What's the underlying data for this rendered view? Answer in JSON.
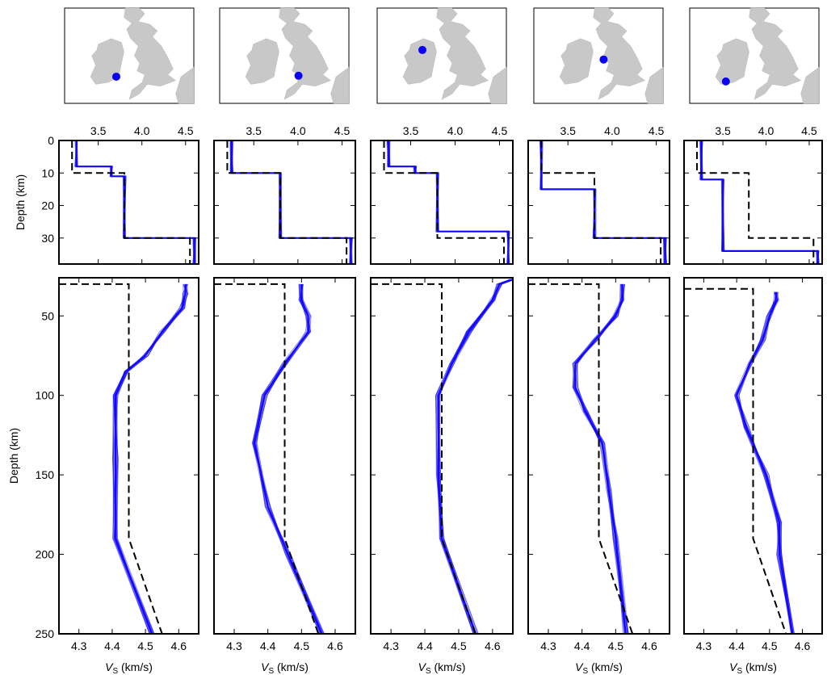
{
  "figure": {
    "colors": {
      "model": "#1a10ff",
      "reference": "#000000",
      "station": "#0b00f5",
      "land": "#c8c8c8"
    }
  },
  "chart_data": [
    {
      "type": "line",
      "panel_role": "maps",
      "count": 5,
      "station_markers": [
        "south-west Ireland",
        "English Midlands",
        "north-west Ireland",
        "Irish Sea coast",
        "southern Ireland"
      ]
    },
    {
      "type": "line",
      "panel_role": "crust",
      "ylabel": "Depth (km)",
      "xlim": [
        3.05,
        4.65
      ],
      "ylim": [
        38,
        0
      ],
      "x_ticks": [
        3.5,
        4.0,
        4.5
      ],
      "x_tick_labels": [
        "3.5",
        "4.0",
        "4.5"
      ],
      "y_ticks": [
        0,
        10,
        20,
        30
      ],
      "y_tick_labels": [
        "0",
        "10",
        "20",
        "30"
      ],
      "panels": [
        {
          "reference": {
            "depth": [
              0,
              10,
              10,
              30,
              30,
              38
            ],
            "vs": [
              3.2,
              3.2,
              3.8,
              3.8,
              4.55,
              4.55
            ]
          },
          "model": {
            "depth": [
              0,
              8,
              8,
              11,
              11,
              30,
              30,
              38
            ],
            "vs": [
              3.25,
              3.25,
              3.65,
              3.65,
              3.8,
              3.8,
              4.6,
              4.6
            ]
          }
        },
        {
          "reference": {
            "depth": [
              0,
              10,
              10,
              30,
              30,
              38
            ],
            "vs": [
              3.2,
              3.2,
              3.8,
              3.8,
              4.55,
              4.55
            ]
          },
          "model": {
            "depth": [
              0,
              10,
              10,
              30,
              30,
              38
            ],
            "vs": [
              3.25,
              3.25,
              3.8,
              3.8,
              4.6,
              4.6
            ]
          }
        },
        {
          "reference": {
            "depth": [
              0,
              10,
              10,
              30,
              30,
              38
            ],
            "vs": [
              3.2,
              3.2,
              3.8,
              3.8,
              4.55,
              4.55
            ]
          },
          "model": {
            "depth": [
              0,
              8,
              8,
              10,
              10,
              28,
              28,
              38
            ],
            "vs": [
              3.25,
              3.25,
              3.55,
              3.55,
              3.8,
              3.8,
              4.6,
              4.6
            ]
          }
        },
        {
          "reference": {
            "depth": [
              0,
              10,
              10,
              30,
              30,
              38
            ],
            "vs": [
              3.2,
              3.2,
              3.8,
              3.8,
              4.55,
              4.55
            ]
          },
          "model": {
            "depth": [
              0,
              15,
              15,
              30,
              30,
              38
            ],
            "vs": [
              3.2,
              3.2,
              3.8,
              3.8,
              4.6,
              4.6
            ]
          }
        },
        {
          "reference": {
            "depth": [
              0,
              10,
              10,
              30,
              30,
              38
            ],
            "vs": [
              3.2,
              3.2,
              3.8,
              3.8,
              4.55,
              4.55
            ]
          },
          "model": {
            "depth": [
              0,
              12,
              12,
              34,
              34,
              38
            ],
            "vs": [
              3.25,
              3.25,
              3.5,
              3.5,
              4.6,
              4.6
            ]
          }
        }
      ]
    },
    {
      "type": "line",
      "panel_role": "mantle",
      "ylabel": "Depth (km)",
      "xlabel": "V",
      "xlabel_sub": "S",
      "xlabel_unit": "(km/s)",
      "xlim": [
        4.24,
        4.66
      ],
      "ylim": [
        250,
        26
      ],
      "x_ticks": [
        4.3,
        4.4,
        4.5,
        4.6
      ],
      "x_tick_labels": [
        "4.3",
        "4.4",
        "4.5",
        "4.6"
      ],
      "y_ticks": [
        50,
        100,
        150,
        200,
        250
      ],
      "y_tick_labels": [
        "50",
        "100",
        "150",
        "200",
        "250"
      ],
      "panels": [
        {
          "reference": {
            "depth": [
              30,
              30,
              190,
              250
            ],
            "vs": [
              4.24,
              4.45,
              4.45,
              4.55
            ]
          },
          "model": {
            "depth": [
              30,
              36,
              45,
              60,
              75,
              85,
              100,
              140,
              190,
              250
            ],
            "vs": [
              4.62,
              4.62,
              4.61,
              4.55,
              4.5,
              4.44,
              4.41,
              4.41,
              4.41,
              4.52
            ]
          }
        },
        {
          "reference": {
            "depth": [
              30,
              30,
              190,
              250
            ],
            "vs": [
              4.24,
              4.45,
              4.45,
              4.55
            ]
          },
          "model": {
            "depth": [
              30,
              40,
              50,
              60,
              80,
              100,
              130,
              170,
              200,
              250
            ],
            "vs": [
              4.5,
              4.5,
              4.52,
              4.52,
              4.45,
              4.39,
              4.36,
              4.4,
              4.46,
              4.56
            ]
          }
        },
        {
          "reference": {
            "depth": [
              30,
              30,
              190,
              250
            ],
            "vs": [
              4.24,
              4.45,
              4.45,
              4.55
            ]
          },
          "model": {
            "depth": [
              27,
              30,
              40,
              60,
              80,
              100,
              150,
              190,
              250
            ],
            "vs": [
              4.66,
              4.62,
              4.6,
              4.53,
              4.48,
              4.44,
              4.44,
              4.45,
              4.55
            ]
          }
        },
        {
          "reference": {
            "depth": [
              30,
              30,
              190,
              250
            ],
            "vs": [
              4.24,
              4.45,
              4.45,
              4.55
            ]
          },
          "model": {
            "depth": [
              30,
              40,
              50,
              65,
              80,
              95,
              110,
              130,
              160,
              190,
              250
            ],
            "vs": [
              4.52,
              4.52,
              4.5,
              4.44,
              4.38,
              4.38,
              4.41,
              4.46,
              4.48,
              4.5,
              4.53
            ]
          }
        },
        {
          "reference": {
            "depth": [
              33,
              33,
              190,
              250
            ],
            "vs": [
              4.24,
              4.45,
              4.45,
              4.55
            ]
          },
          "model": {
            "depth": [
              35,
              40,
              50,
              65,
              80,
              100,
              120,
              150,
              180,
              200,
              250
            ],
            "vs": [
              4.52,
              4.52,
              4.5,
              4.48,
              4.44,
              4.4,
              4.43,
              4.49,
              4.53,
              4.53,
              4.57
            ]
          }
        }
      ]
    }
  ]
}
